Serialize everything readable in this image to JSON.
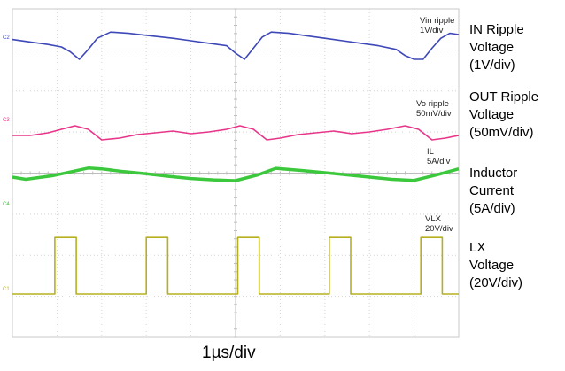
{
  "chart_data": {
    "type": "line",
    "title": "",
    "xlabel": "1µs/div",
    "time_unit": "µs",
    "x_range": [
      0,
      10
    ],
    "grid": true,
    "ch_markers": [
      "C2",
      "C3",
      "C4",
      "C1"
    ],
    "series": [
      {
        "name": "IN Ripple Voltage",
        "scope_label": [
          "Vin ripple",
          "1V/div"
        ],
        "side_label": [
          "IN Ripple",
          "Voltage",
          "(1V/div)"
        ],
        "color": "#3e48b8",
        "unit": "V",
        "volts_per_div": 1,
        "x": [
          0,
          0.4,
          0.8,
          1.1,
          1.3,
          1.5,
          1.7,
          1.9,
          2.2,
          2.6,
          3.1,
          3.6,
          4.0,
          4.4,
          4.8,
          5.0,
          5.2,
          5.4,
          5.6,
          5.8,
          6.2,
          6.6,
          7.0,
          7.4,
          7.8,
          8.2,
          8.6,
          8.8,
          9.0,
          9.2,
          9.4,
          9.6,
          9.8,
          10.0
        ],
        "y": [
          0.05,
          -0.05,
          -0.15,
          -0.25,
          -0.45,
          -0.75,
          -0.35,
          0.1,
          0.35,
          0.3,
          0.2,
          0.1,
          0.0,
          -0.1,
          -0.2,
          -0.5,
          -0.75,
          -0.3,
          0.15,
          0.35,
          0.3,
          0.2,
          0.1,
          0.0,
          -0.1,
          -0.2,
          -0.35,
          -0.6,
          -0.75,
          -0.75,
          -0.3,
          0.1,
          0.3,
          0.25
        ]
      },
      {
        "name": "OUT Ripple Voltage",
        "scope_label": [
          "Vo ripple",
          "50mV/div"
        ],
        "side_label": [
          "OUT Ripple",
          "Voltage",
          "(50mV/div)"
        ],
        "color": "#e8358a",
        "unit": "mV",
        "volts_per_div": 50,
        "x": [
          0,
          0.4,
          0.8,
          1.1,
          1.4,
          1.7,
          2.0,
          2.4,
          2.8,
          3.2,
          3.6,
          4.0,
          4.4,
          4.8,
          5.1,
          5.4,
          5.7,
          6.0,
          6.4,
          6.8,
          7.2,
          7.6,
          8.0,
          8.4,
          8.8,
          9.1,
          9.4,
          9.7,
          10.0
        ],
        "y": [
          -5,
          -5,
          -2,
          2,
          6,
          2,
          -10,
          -8,
          -4,
          -2,
          0,
          -3,
          -1,
          2,
          6,
          2,
          -10,
          -8,
          -4,
          -2,
          0,
          -3,
          -1,
          2,
          6,
          2,
          -10,
          -8,
          -5
        ]
      },
      {
        "name": "Inductor Current",
        "scope_label": [
          "IL",
          "5A/div"
        ],
        "side_label": [
          "Inductor",
          "Current",
          "(5A/div)"
        ],
        "color": "#3cc83c",
        "unit": "A",
        "volts_per_div": 5,
        "x": [
          0,
          0.3,
          0.9,
          1.7,
          2.0,
          2.5,
          3.0,
          3.5,
          4.0,
          4.5,
          5.0,
          5.5,
          5.9,
          6.5,
          7.0,
          7.5,
          8.0,
          8.5,
          9.0,
          9.5,
          10.0
        ],
        "y": [
          0.0,
          -0.8,
          0.5,
          3.3,
          3.0,
          2.0,
          1.2,
          0.3,
          -0.5,
          -1.0,
          -1.3,
          0.8,
          3.2,
          2.4,
          1.6,
          0.8,
          0.0,
          -0.8,
          -1.2,
          0.8,
          3.0
        ]
      },
      {
        "name": "LX Voltage",
        "scope_label": [
          "VLX",
          "20V/div"
        ],
        "side_label": [
          "LX",
          "Voltage",
          "(20V/div)"
        ],
        "color": "#b6b020",
        "unit": "V",
        "volts_per_div": 20,
        "period_us": 2.05,
        "on_time_us": 0.48,
        "pulse_starts_us": [
          0.95,
          3.0,
          5.05,
          7.1,
          9.15
        ],
        "y_low": 0,
        "y_high": 58
      }
    ]
  }
}
